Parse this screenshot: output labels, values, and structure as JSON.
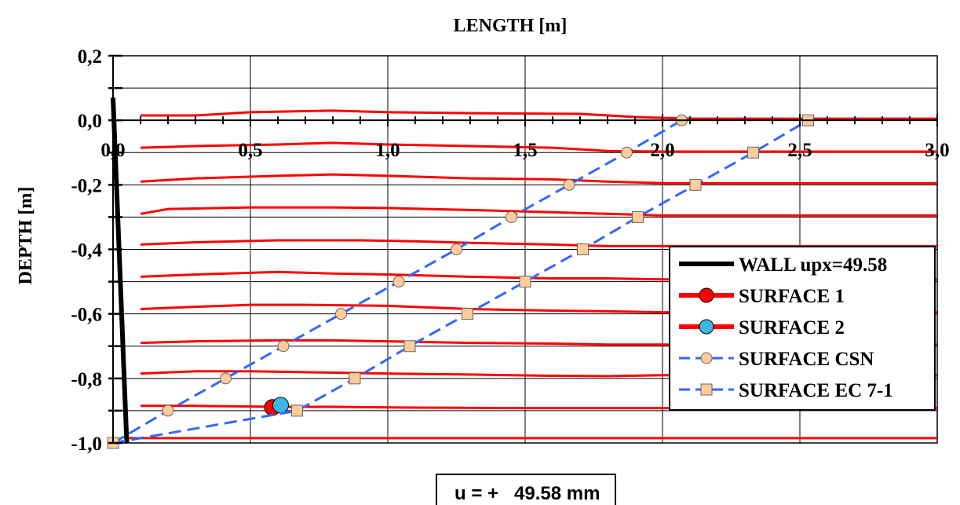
{
  "chart_data": {
    "type": "line",
    "xlabel": "LENGTH  [m]",
    "ylabel": "DEPTH  [m]",
    "xlim": [
      0,
      3
    ],
    "ylim": [
      -1,
      0.2
    ],
    "x_ticks": [
      "0,0",
      "0,5",
      "1,0",
      "1,5",
      "2,0",
      "2,5",
      "3,0"
    ],
    "x_tick_values": [
      0,
      0.5,
      1,
      1.5,
      2,
      2.5,
      3
    ],
    "y_ticks": [
      "0,2",
      "0,0",
      "-0,2",
      "-0,4",
      "-0,6",
      "-0,8",
      "-1,0"
    ],
    "y_tick_values": [
      0.2,
      0,
      -0.2,
      -0.4,
      -0.6,
      -0.8,
      -1.0
    ],
    "grid": true,
    "legend_position": "right",
    "readout": "u = +   49.58 mm",
    "layers": [
      {
        "depth": 0.0,
        "points": [
          [
            0.1,
            0.015
          ],
          [
            0.3,
            0.015
          ],
          [
            0.5,
            0.025
          ],
          [
            0.8,
            0.03
          ],
          [
            1.0,
            0.025
          ],
          [
            1.3,
            0.022
          ],
          [
            1.7,
            0.02
          ],
          [
            1.9,
            0.01
          ],
          [
            2.1,
            0.005
          ],
          [
            3.0,
            0.005
          ]
        ]
      },
      {
        "depth": -0.1,
        "points": [
          [
            0.1,
            -0.085
          ],
          [
            0.3,
            -0.08
          ],
          [
            0.6,
            -0.075
          ],
          [
            0.8,
            -0.07
          ],
          [
            1.0,
            -0.075
          ],
          [
            1.3,
            -0.08
          ],
          [
            1.6,
            -0.085
          ],
          [
            1.8,
            -0.095
          ],
          [
            2.0,
            -0.097
          ],
          [
            3.0,
            -0.097
          ]
        ]
      },
      {
        "depth": -0.2,
        "points": [
          [
            0.1,
            -0.19
          ],
          [
            0.3,
            -0.18
          ],
          [
            0.6,
            -0.172
          ],
          [
            0.8,
            -0.168
          ],
          [
            1.0,
            -0.172
          ],
          [
            1.3,
            -0.18
          ],
          [
            1.6,
            -0.183
          ],
          [
            1.8,
            -0.19
          ],
          [
            2.0,
            -0.195
          ],
          [
            3.0,
            -0.195
          ]
        ]
      },
      {
        "depth": -0.3,
        "points": [
          [
            0.1,
            -0.29
          ],
          [
            0.2,
            -0.275
          ],
          [
            0.5,
            -0.27
          ],
          [
            0.8,
            -0.27
          ],
          [
            1.0,
            -0.272
          ],
          [
            1.3,
            -0.278
          ],
          [
            1.6,
            -0.285
          ],
          [
            1.8,
            -0.29
          ],
          [
            2.0,
            -0.295
          ],
          [
            3.0,
            -0.295
          ]
        ]
      },
      {
        "depth": -0.4,
        "points": [
          [
            0.1,
            -0.385
          ],
          [
            0.3,
            -0.378
          ],
          [
            0.6,
            -0.372
          ],
          [
            0.9,
            -0.372
          ],
          [
            1.1,
            -0.375
          ],
          [
            1.3,
            -0.38
          ],
          [
            1.6,
            -0.385
          ],
          [
            1.8,
            -0.39
          ],
          [
            2.0,
            -0.39
          ],
          [
            3.0,
            -0.39
          ]
        ]
      },
      {
        "depth": -0.5,
        "points": [
          [
            0.1,
            -0.485
          ],
          [
            0.3,
            -0.478
          ],
          [
            0.6,
            -0.47
          ],
          [
            0.8,
            -0.475
          ],
          [
            1.0,
            -0.478
          ],
          [
            1.3,
            -0.485
          ],
          [
            1.6,
            -0.49
          ],
          [
            1.8,
            -0.49
          ],
          [
            2.0,
            -0.493
          ],
          [
            3.0,
            -0.493
          ]
        ]
      },
      {
        "depth": -0.6,
        "points": [
          [
            0.1,
            -0.585
          ],
          [
            0.3,
            -0.578
          ],
          [
            0.5,
            -0.572
          ],
          [
            0.7,
            -0.572
          ],
          [
            1.0,
            -0.575
          ],
          [
            1.3,
            -0.585
          ],
          [
            1.6,
            -0.59
          ],
          [
            1.8,
            -0.592
          ],
          [
            2.0,
            -0.595
          ],
          [
            3.0,
            -0.595
          ]
        ]
      },
      {
        "depth": -0.7,
        "points": [
          [
            0.1,
            -0.69
          ],
          [
            0.3,
            -0.685
          ],
          [
            0.6,
            -0.682
          ],
          [
            0.8,
            -0.682
          ],
          [
            1.0,
            -0.685
          ],
          [
            1.3,
            -0.69
          ],
          [
            1.6,
            -0.692
          ],
          [
            1.8,
            -0.695
          ],
          [
            2.0,
            -0.695
          ],
          [
            3.0,
            -0.695
          ]
        ]
      },
      {
        "depth": -0.8,
        "points": [
          [
            0.1,
            -0.785
          ],
          [
            0.3,
            -0.778
          ],
          [
            0.5,
            -0.778
          ],
          [
            0.8,
            -0.782
          ],
          [
            1.0,
            -0.785
          ],
          [
            1.3,
            -0.788
          ],
          [
            1.6,
            -0.792
          ],
          [
            1.8,
            -0.793
          ],
          [
            2.0,
            -0.79
          ],
          [
            3.0,
            -0.79
          ]
        ]
      },
      {
        "depth": -0.9,
        "points": [
          [
            0.1,
            -0.885
          ],
          [
            0.3,
            -0.885
          ],
          [
            0.6,
            -0.888
          ],
          [
            0.8,
            -0.888
          ],
          [
            1.0,
            -0.89
          ],
          [
            1.5,
            -0.892
          ],
          [
            2.0,
            -0.892
          ],
          [
            3.0,
            -0.892
          ]
        ]
      },
      {
        "depth": -1.0,
        "points": [
          [
            0.05,
            -0.985
          ],
          [
            3.0,
            -0.985
          ]
        ]
      }
    ],
    "series": [
      {
        "name": "WALL upx=49.58",
        "color": "#000000",
        "points": [
          [
            0.0,
            0.07
          ],
          [
            0.05,
            -1.0
          ]
        ]
      },
      {
        "name": "SURFACE 1",
        "color": "#ff0000",
        "marker": "circle",
        "points": [
          [
            0.58,
            -0.89
          ]
        ]
      },
      {
        "name": "SURFACE 2",
        "color": "#3cb4e6",
        "marker": "circle",
        "points": [
          [
            0.61,
            -0.883
          ]
        ]
      },
      {
        "name": "SURFACE CSN",
        "color": "#3366ff",
        "marker": "circle",
        "marker_fill": "#ffcc99",
        "points": [
          [
            0.0,
            -1.0
          ],
          [
            0.2,
            -0.9
          ],
          [
            0.41,
            -0.8
          ],
          [
            0.62,
            -0.7
          ],
          [
            0.83,
            -0.6
          ],
          [
            1.04,
            -0.5
          ],
          [
            1.25,
            -0.4
          ],
          [
            1.45,
            -0.3
          ],
          [
            1.66,
            -0.2
          ],
          [
            1.87,
            -0.1
          ],
          [
            2.07,
            0.0
          ]
        ]
      },
      {
        "name": "SURFACE EC 7-1",
        "color": "#3366ff",
        "marker": "square",
        "marker_fill": "#ffcc99",
        "points": [
          [
            0.0,
            -1.0
          ],
          [
            0.67,
            -0.9
          ],
          [
            0.88,
            -0.8
          ],
          [
            1.08,
            -0.7
          ],
          [
            1.29,
            -0.6
          ],
          [
            1.5,
            -0.5
          ],
          [
            1.71,
            -0.4
          ],
          [
            1.91,
            -0.3
          ],
          [
            2.12,
            -0.2
          ],
          [
            2.33,
            -0.1
          ],
          [
            2.53,
            0.0
          ]
        ]
      }
    ]
  }
}
